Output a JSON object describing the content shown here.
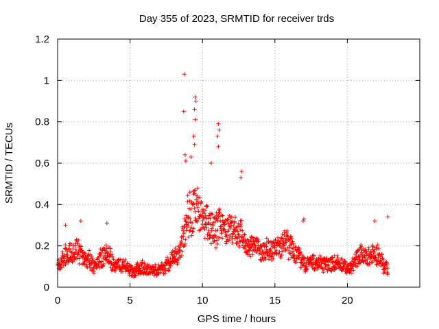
{
  "chart_data": {
    "type": "scatter",
    "title": "Day 355 of 2023, SRMTID for receiver trds",
    "xlabel": "GPS time / hours",
    "ylabel": "SRMTID / TECUs",
    "xlim": [
      0,
      25
    ],
    "ylim": [
      0,
      1.2
    ],
    "x_ticks": [
      0,
      5,
      10,
      15,
      20
    ],
    "x_tick_labels": [
      "0",
      "5",
      "10",
      "15",
      "20"
    ],
    "y_ticks": [
      0,
      0.2,
      0.4,
      0.6,
      0.8,
      1,
      1.2
    ],
    "y_tick_labels": [
      "0",
      "0.2",
      "0.4",
      "0.6",
      "0.8",
      "1",
      "1.2"
    ],
    "grid": true,
    "marker": "plus",
    "color": "#ff0000",
    "series": [
      {
        "name": "SRMTID",
        "sampling_minutes": 1,
        "x_range": [
          0,
          22.8
        ],
        "approx_envelope": [
          {
            "hour": 0.0,
            "typical": 0.11,
            "spread": 0.08
          },
          {
            "hour": 0.5,
            "typical": 0.14,
            "spread": 0.1
          },
          {
            "hour": 1.0,
            "typical": 0.16,
            "spread": 0.1
          },
          {
            "hour": 1.5,
            "typical": 0.18,
            "spread": 0.11
          },
          {
            "hour": 2.0,
            "typical": 0.13,
            "spread": 0.09
          },
          {
            "hour": 2.5,
            "typical": 0.11,
            "spread": 0.08
          },
          {
            "hour": 3.0,
            "typical": 0.14,
            "spread": 0.1
          },
          {
            "hour": 3.5,
            "typical": 0.15,
            "spread": 0.1
          },
          {
            "hour": 4.0,
            "typical": 0.11,
            "spread": 0.08
          },
          {
            "hour": 5.0,
            "typical": 0.09,
            "spread": 0.06
          },
          {
            "hour": 6.0,
            "typical": 0.09,
            "spread": 0.06
          },
          {
            "hour": 7.0,
            "typical": 0.08,
            "spread": 0.05
          },
          {
            "hour": 7.5,
            "typical": 0.1,
            "spread": 0.06
          },
          {
            "hour": 8.0,
            "typical": 0.14,
            "spread": 0.08
          },
          {
            "hour": 8.5,
            "typical": 0.18,
            "spread": 0.09
          },
          {
            "hour": 9.0,
            "typical": 0.35,
            "spread": 0.22
          },
          {
            "hour": 9.5,
            "typical": 0.4,
            "spread": 0.22
          },
          {
            "hour": 10.0,
            "typical": 0.32,
            "spread": 0.16
          },
          {
            "hour": 10.5,
            "typical": 0.3,
            "spread": 0.16
          },
          {
            "hour": 11.0,
            "typical": 0.3,
            "spread": 0.18
          },
          {
            "hour": 11.5,
            "typical": 0.28,
            "spread": 0.14
          },
          {
            "hour": 12.0,
            "typical": 0.27,
            "spread": 0.13
          },
          {
            "hour": 12.5,
            "typical": 0.28,
            "spread": 0.14
          },
          {
            "hour": 13.0,
            "typical": 0.22,
            "spread": 0.1
          },
          {
            "hour": 14.0,
            "typical": 0.18,
            "spread": 0.1
          },
          {
            "hour": 15.0,
            "typical": 0.19,
            "spread": 0.1
          },
          {
            "hour": 16.0,
            "typical": 0.22,
            "spread": 0.12
          },
          {
            "hour": 17.0,
            "typical": 0.11,
            "spread": 0.07
          },
          {
            "hour": 18.0,
            "typical": 0.11,
            "spread": 0.07
          },
          {
            "hour": 19.0,
            "typical": 0.12,
            "spread": 0.08
          },
          {
            "hour": 20.0,
            "typical": 0.09,
            "spread": 0.06
          },
          {
            "hour": 21.0,
            "typical": 0.15,
            "spread": 0.1
          },
          {
            "hour": 22.0,
            "typical": 0.16,
            "spread": 0.1
          },
          {
            "hour": 22.8,
            "typical": 0.09,
            "spread": 0.06
          }
        ],
        "notable_points": [
          {
            "x": 8.75,
            "y": 1.03
          },
          {
            "x": 8.7,
            "y": 0.85
          },
          {
            "x": 9.5,
            "y": 0.92
          },
          {
            "x": 9.55,
            "y": 0.9
          },
          {
            "x": 9.45,
            "y": 0.86
          },
          {
            "x": 9.5,
            "y": 0.81
          },
          {
            "x": 11.1,
            "y": 0.79
          },
          {
            "x": 11.15,
            "y": 0.76
          },
          {
            "x": 11.05,
            "y": 0.73
          },
          {
            "x": 9.4,
            "y": 0.73
          },
          {
            "x": 9.45,
            "y": 0.69
          },
          {
            "x": 11.1,
            "y": 0.68
          },
          {
            "x": 8.8,
            "y": 0.64
          },
          {
            "x": 8.85,
            "y": 0.61
          },
          {
            "x": 9.2,
            "y": 0.63
          },
          {
            "x": 10.6,
            "y": 0.6
          },
          {
            "x": 12.7,
            "y": 0.56
          },
          {
            "x": 12.65,
            "y": 0.53
          },
          {
            "x": 22.8,
            "y": 0.34
          },
          {
            "x": 17.0,
            "y": 0.33
          },
          {
            "x": 16.95,
            "y": 0.32
          },
          {
            "x": 21.9,
            "y": 0.32
          },
          {
            "x": 1.6,
            "y": 0.32
          },
          {
            "x": 3.4,
            "y": 0.31
          },
          {
            "x": 0.55,
            "y": 0.3
          }
        ]
      }
    ]
  }
}
